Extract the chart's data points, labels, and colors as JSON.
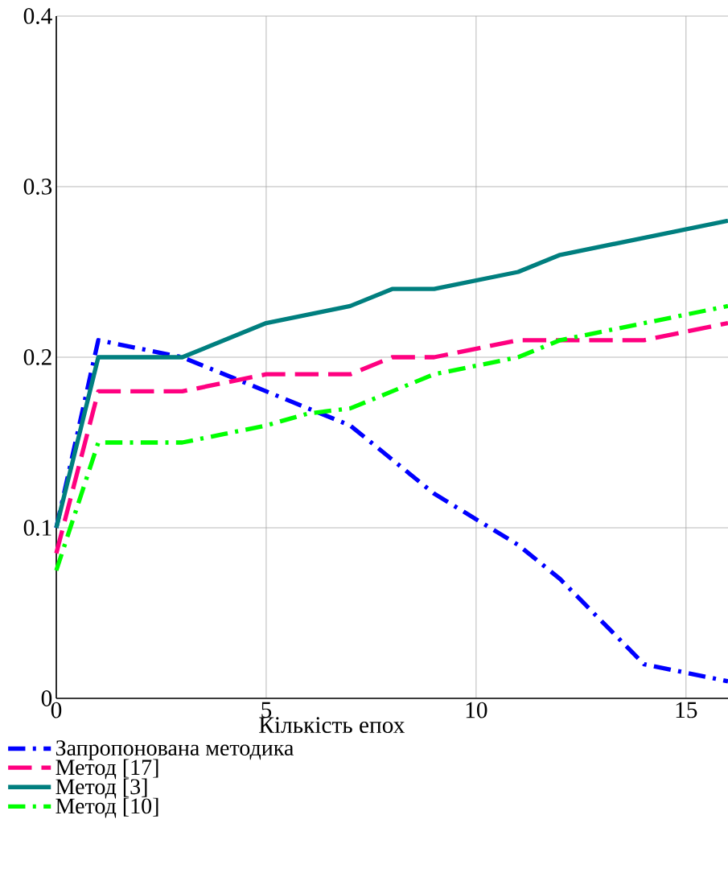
{
  "chart_data": {
    "type": "line",
    "xlabel": "Кількість епох",
    "xlim": [
      0,
      16
    ],
    "ylim": [
      0,
      0.4
    ],
    "xticks": [
      0,
      5,
      10,
      15
    ],
    "yticks": [
      0,
      0.1,
      0.2,
      0.3,
      0.4
    ],
    "grid": true,
    "legend": "bottom left",
    "series": [
      {
        "name": "Запропонована методика",
        "color": "#0000ff",
        "line_style": "dashdot",
        "x": [
          0,
          1,
          3,
          5,
          7,
          8,
          9,
          11,
          12,
          14,
          16
        ],
        "values": [
          0.1,
          0.21,
          0.2,
          0.18,
          0.16,
          0.14,
          0.12,
          0.09,
          0.07,
          0.02,
          0.01
        ]
      },
      {
        "name": "Метод [17]",
        "color": "#ff0080",
        "line_style": "dashed",
        "x": [
          0,
          1,
          3,
          4,
          5,
          7,
          8,
          9,
          11,
          14,
          16
        ],
        "values": [
          0.085,
          0.18,
          0.18,
          0.185,
          0.19,
          0.19,
          0.2,
          0.2,
          0.21,
          0.21,
          0.22
        ]
      },
      {
        "name": "Метод [3]",
        "color": "#007f7f",
        "line_style": "solid",
        "x": [
          0,
          1,
          3,
          5,
          7,
          8,
          9,
          11,
          12,
          16
        ],
        "values": [
          0.1,
          0.2,
          0.2,
          0.22,
          0.23,
          0.24,
          0.24,
          0.25,
          0.26,
          0.28
        ]
      },
      {
        "name": "Метод [10]",
        "color": "#00ff00",
        "line_style": "dashdot",
        "x": [
          0,
          1,
          3,
          4,
          5,
          6,
          7,
          8,
          9,
          11,
          12,
          14,
          16
        ],
        "values": [
          0.075,
          0.15,
          0.15,
          0.155,
          0.16,
          0.167,
          0.17,
          0.18,
          0.19,
          0.2,
          0.21,
          0.22,
          0.23
        ]
      }
    ]
  }
}
